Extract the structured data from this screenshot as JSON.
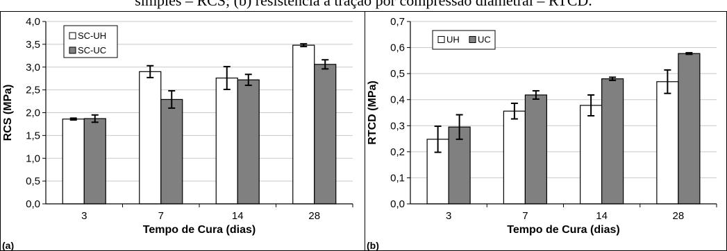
{
  "caption": "simples – RCS; (b) resistência à tração por compressão diametral – RTCD.",
  "chart_data": [
    {
      "type": "bar",
      "panel_label": "(a)",
      "categories": [
        "3",
        "7",
        "14",
        "28"
      ],
      "xlabel": "Tempo de Cura (dias)",
      "ylabel": "RCS (MPa)",
      "ylim": [
        0,
        4.0
      ],
      "ytick_step": 0.5,
      "yticks": [
        "0,0",
        "0,5",
        "1,0",
        "1,5",
        "2,0",
        "2,5",
        "3,0",
        "3,5",
        "4,0"
      ],
      "grid": true,
      "legend": "top-left",
      "series": [
        {
          "name": "SC-UH",
          "color": "#ffffff",
          "values": [
            1.86,
            2.9,
            2.76,
            3.48
          ],
          "errors": [
            0.02,
            0.13,
            0.25,
            0.03
          ]
        },
        {
          "name": "SC-UC",
          "color": "#808080",
          "values": [
            1.87,
            2.29,
            2.72,
            3.06
          ],
          "errors": [
            0.08,
            0.19,
            0.12,
            0.1
          ]
        }
      ]
    },
    {
      "type": "bar",
      "panel_label": "(b)",
      "categories": [
        "3",
        "7",
        "14",
        "28"
      ],
      "xlabel": "Tempo de Cura (dias)",
      "ylabel": "RTCD (MPa)",
      "ylim": [
        0,
        0.7
      ],
      "ytick_step": 0.1,
      "yticks": [
        "0,0",
        "0,1",
        "0,2",
        "0,3",
        "0,4",
        "0,5",
        "0,6",
        "0,7"
      ],
      "grid": true,
      "legend": "top-left",
      "series": [
        {
          "name": "UH",
          "color": "#ffffff",
          "values": [
            0.248,
            0.356,
            0.378,
            0.469
          ],
          "errors": [
            0.05,
            0.03,
            0.04,
            0.045
          ]
        },
        {
          "name": "UC",
          "color": "#808080",
          "values": [
            0.295,
            0.418,
            0.48,
            0.577
          ],
          "errors": [
            0.047,
            0.016,
            0.006,
            0.003
          ]
        }
      ]
    }
  ]
}
